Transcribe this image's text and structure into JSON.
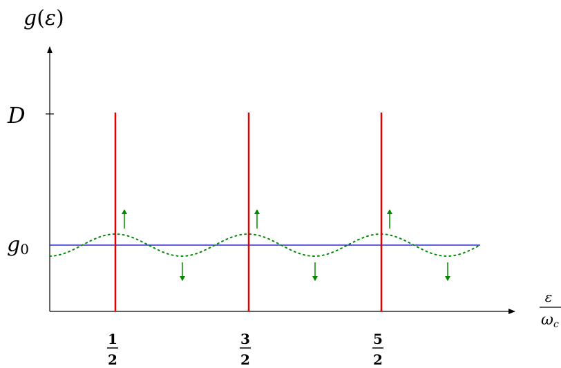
{
  "diagram": {
    "y_axis_label": {
      "func": "g",
      "open": "(",
      "arg": "ε",
      "close": ")"
    },
    "x_axis_label": {
      "numerator": "ε",
      "denominator_main": "ω",
      "denominator_sub": "c"
    },
    "level_D_label": "D",
    "level_g0_label": {
      "main": "g",
      "sub": "0"
    },
    "x_ticks": [
      {
        "numerator": "1",
        "denominator": "2"
      },
      {
        "numerator": "3",
        "denominator": "2"
      },
      {
        "numerator": "5",
        "denominator": "2"
      }
    ],
    "colors": {
      "axes": "#000000",
      "delta_peaks": "#e00000",
      "constant_level": "#0000cc",
      "oscillation": "#008800",
      "arrows": "#008800"
    },
    "line_styles": {
      "oscillation": "dotted",
      "constant_level": "solid",
      "delta_peaks": "solid"
    }
  }
}
